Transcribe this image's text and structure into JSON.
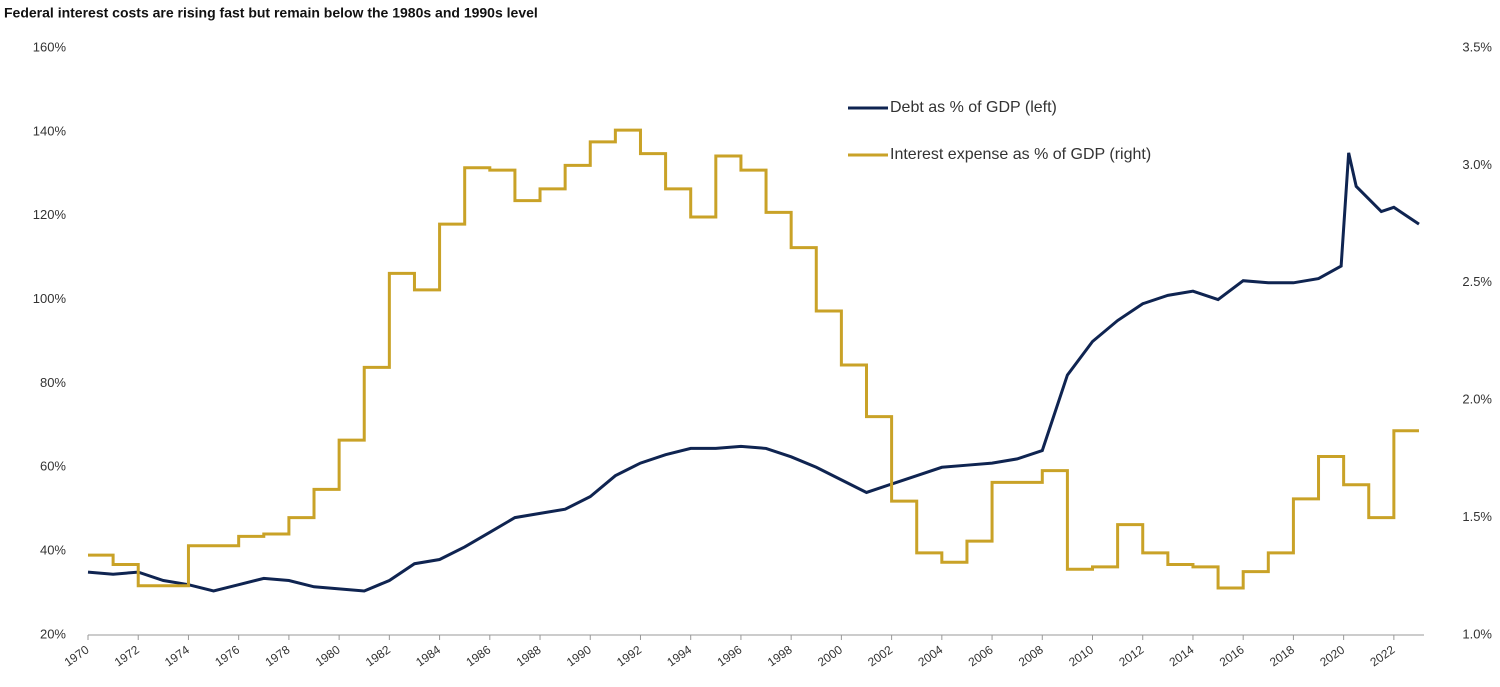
{
  "chart_data": {
    "type": "line",
    "title": "Federal interest costs are rising fast but remain below the 1980s and 1990s level",
    "xlim": [
      1970,
      2023.2
    ],
    "xticks": [
      1970,
      1972,
      1974,
      1976,
      1978,
      1980,
      1982,
      1984,
      1986,
      1988,
      1990,
      1992,
      1994,
      1996,
      1998,
      2000,
      2002,
      2004,
      2006,
      2008,
      2010,
      2012,
      2014,
      2016,
      2018,
      2020,
      2022
    ],
    "ylim": [
      20,
      160
    ],
    "yticks": [
      {
        "value": 20,
        "label": "20%"
      },
      {
        "value": 40,
        "label": "40%"
      },
      {
        "value": 60,
        "label": "60%"
      },
      {
        "value": 80,
        "label": "80%"
      },
      {
        "value": 100,
        "label": "100%"
      },
      {
        "value": 120,
        "label": "120%"
      },
      {
        "value": 140,
        "label": "140%"
      },
      {
        "value": 160,
        "label": "160%"
      }
    ],
    "y2lim": [
      1.0,
      3.5
    ],
    "y2ticks": [
      {
        "value": 1.0,
        "label": "1.0%"
      },
      {
        "value": 1.5,
        "label": "1.5%"
      },
      {
        "value": 2.0,
        "label": "2.0%"
      },
      {
        "value": 2.5,
        "label": "2.5%"
      },
      {
        "value": 3.0,
        "label": "3.0%"
      },
      {
        "value": 3.5,
        "label": "3.5%"
      }
    ],
    "grid": false,
    "legend": "upper right",
    "series": [
      {
        "name": "Debt as % of GDP (left)",
        "color": "#0f2451",
        "axis": "y",
        "x": [
          1970,
          1971,
          1972,
          1973,
          1974,
          1975,
          1976,
          1977,
          1978,
          1979,
          1980,
          1981,
          1982,
          1983,
          1984,
          1985,
          1986,
          1987,
          1988,
          1989,
          1990,
          1991,
          1992,
          1993,
          1994,
          1995,
          1996,
          1997,
          1998,
          1999,
          2000,
          2001,
          2002,
          2003,
          2004,
          2005,
          2006,
          2007,
          2008,
          2009,
          2010,
          2011,
          2012,
          2013,
          2014,
          2015,
          2016,
          2017,
          2018,
          2019,
          2019.9,
          2020.2,
          2020.5,
          2021,
          2021.5,
          2022,
          2022.5,
          2023
        ],
        "values": [
          35,
          34.5,
          35,
          33,
          32,
          30.5,
          32,
          33.5,
          33,
          31.5,
          31,
          30.5,
          33,
          37,
          38,
          41,
          44.5,
          48,
          49,
          50,
          53,
          58,
          61,
          63,
          64.5,
          64.5,
          65,
          64.5,
          62.5,
          60,
          57,
          54,
          56,
          58,
          60,
          60.5,
          61,
          62,
          64,
          82,
          90,
          95,
          99,
          101,
          102,
          100,
          104.5,
          104,
          104,
          105,
          108,
          135,
          127,
          124,
          121,
          122,
          120,
          118
        ]
      },
      {
        "name": "Interest expense as % of GDP (right)",
        "color": "#c9a227",
        "axis": "y2",
        "step": "post",
        "x": [
          1970,
          1971,
          1972,
          1973,
          1974,
          1975,
          1976,
          1977,
          1978,
          1979,
          1980,
          1981,
          1982,
          1983,
          1984,
          1985,
          1986,
          1987,
          1988,
          1989,
          1990,
          1991,
          1992,
          1993,
          1994,
          1995,
          1996,
          1997,
          1998,
          1999,
          2000,
          2001,
          2002,
          2003,
          2004,
          2005,
          2006,
          2007,
          2008,
          2009,
          2010,
          2011,
          2012,
          2013,
          2014,
          2015,
          2016,
          2017,
          2018,
          2019,
          2020,
          2021,
          2022,
          2023
        ],
        "values": [
          1.34,
          1.3,
          1.21,
          1.21,
          1.38,
          1.38,
          1.42,
          1.43,
          1.5,
          1.62,
          1.83,
          2.14,
          2.54,
          2.47,
          2.75,
          2.99,
          2.98,
          2.85,
          2.9,
          3.0,
          3.1,
          3.15,
          3.05,
          2.9,
          2.78,
          3.04,
          2.98,
          2.8,
          2.65,
          2.38,
          2.15,
          1.93,
          1.57,
          1.35,
          1.31,
          1.4,
          1.65,
          1.65,
          1.7,
          1.28,
          1.29,
          1.47,
          1.35,
          1.3,
          1.29,
          1.2,
          1.27,
          1.35,
          1.58,
          1.76,
          1.64,
          1.5,
          1.87,
          1.87
        ]
      }
    ]
  }
}
